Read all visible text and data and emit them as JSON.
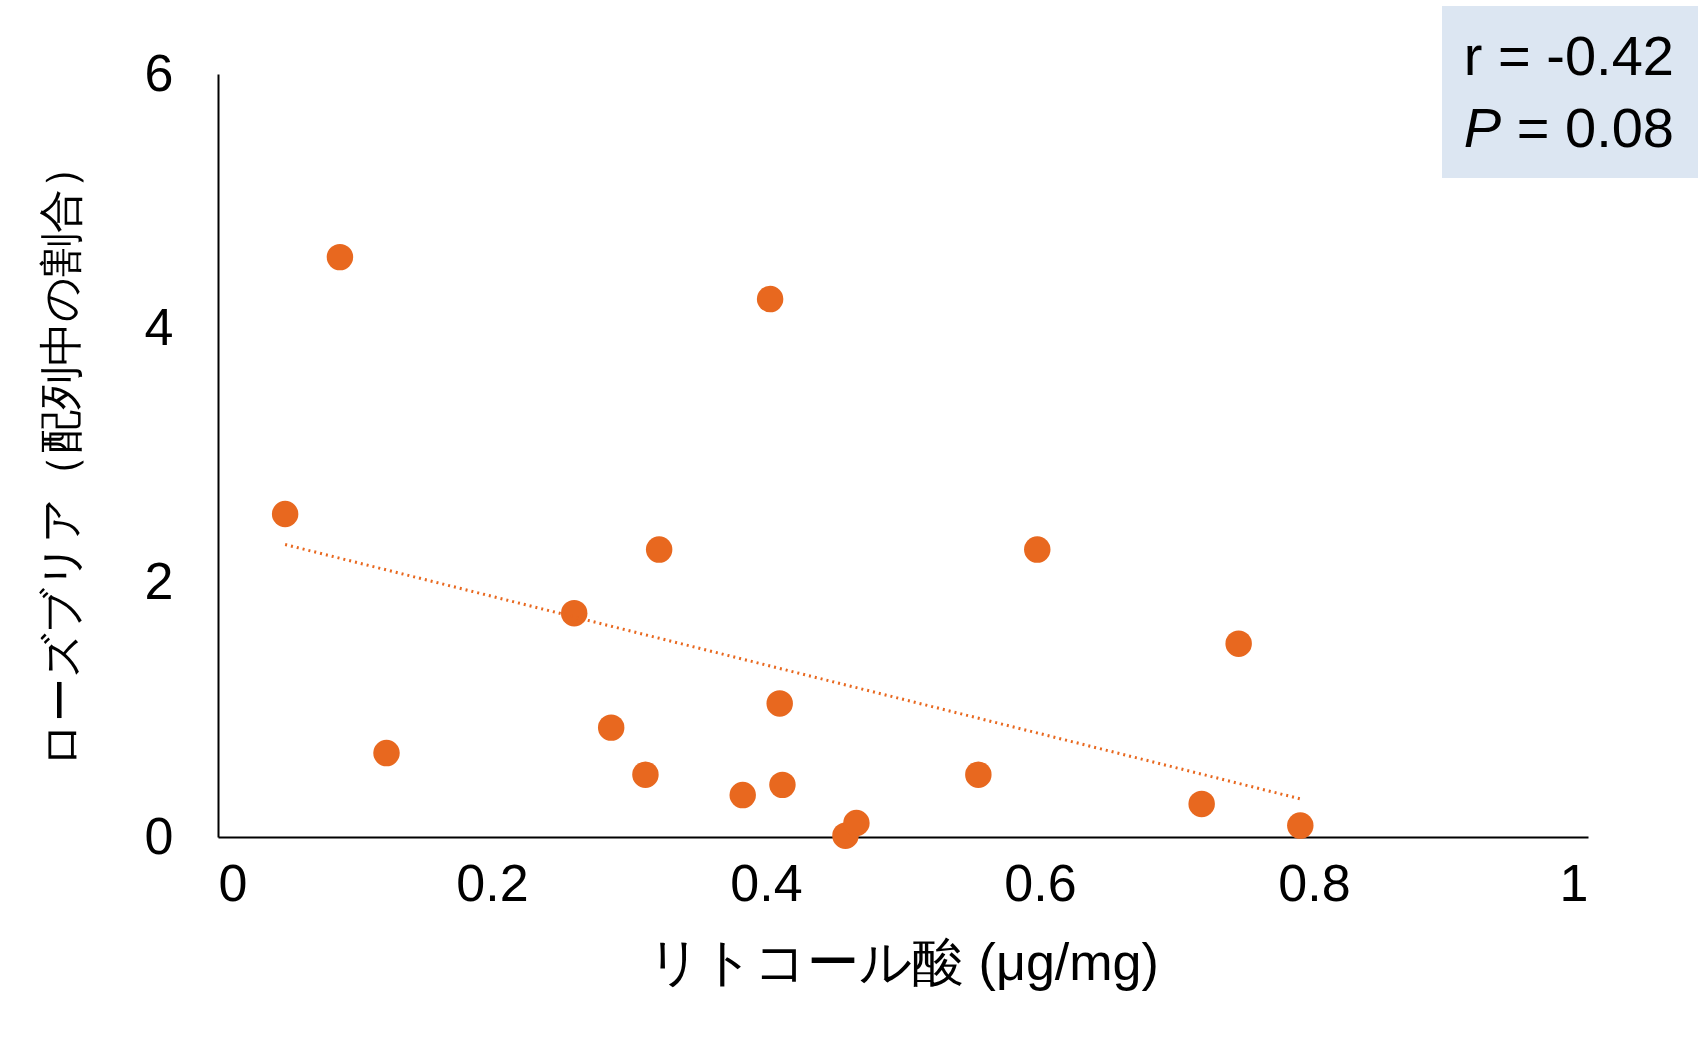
{
  "chart_data": {
    "type": "scatter",
    "xlabel": "リトコール酸 (μg/mg)",
    "ylabel": "ローズブリア（配列中の割合）",
    "xlim": [
      0,
      1
    ],
    "xticks": [
      0,
      0.2,
      0.4,
      0.6,
      0.8,
      1
    ],
    "ylim": [
      0,
      6
    ],
    "yticks": [
      0,
      2,
      4,
      6
    ],
    "annotations": [
      "r = -0.42",
      "P = 0.08"
    ],
    "series": [
      {
        "marker": "circle",
        "color": "#e8681f",
        "x": [
          0.049,
          0.089,
          0.123,
          0.26,
          0.287,
          0.312,
          0.322,
          0.383,
          0.403,
          0.41,
          0.412,
          0.458,
          0.466,
          0.555,
          0.598,
          0.718,
          0.745,
          0.79
        ],
        "values": [
          2.54,
          4.56,
          0.66,
          1.76,
          0.86,
          0.49,
          2.26,
          0.33,
          4.23,
          1.05,
          0.41,
          0.01,
          0.11,
          0.49,
          2.26,
          0.26,
          1.52,
          0.09
        ]
      },
      {
        "type": "line",
        "color": "#e8681f",
        "line_style": "dotted",
        "x": [
          0.049,
          0.79
        ],
        "values": [
          2.3,
          0.3
        ]
      }
    ]
  }
}
